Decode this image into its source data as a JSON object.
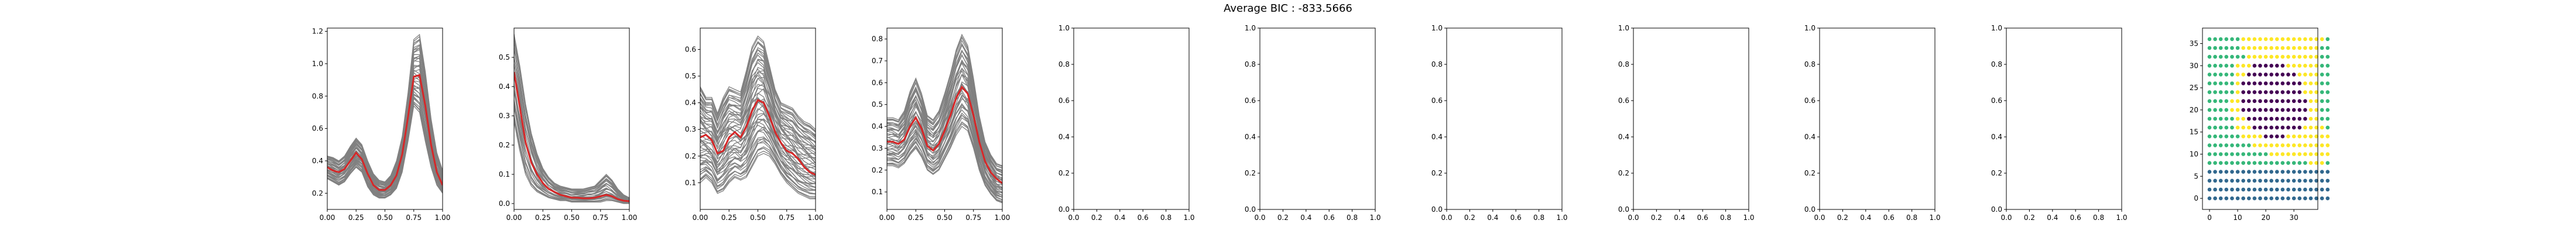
{
  "figure": {
    "suptitle": "Average BIC : -833.5666"
  },
  "colors": {
    "cluster_curves": "#808080",
    "mean_curve": "#d62728",
    "viridis": [
      "#440154",
      "#31688e",
      "#35b779",
      "#fde725"
    ]
  },
  "chart_data": [
    {
      "type": "line",
      "panel": 1,
      "xlim": [
        0.0,
        1.0
      ],
      "ylim": [
        0.1,
        1.22
      ],
      "x_ticks": [
        "0.00",
        "0.25",
        "0.50",
        "0.75",
        "1.00"
      ],
      "y_ticks": [
        "0.2",
        "0.4",
        "0.6",
        "0.8",
        "1.0",
        "1.2"
      ],
      "x": [
        0.0,
        0.05,
        0.1,
        0.15,
        0.2,
        0.25,
        0.3,
        0.35,
        0.4,
        0.45,
        0.5,
        0.55,
        0.6,
        0.65,
        0.7,
        0.75,
        0.8,
        0.85,
        0.9,
        0.95,
        1.0
      ],
      "series": [
        {
          "role": "cluster curves",
          "color": "gray",
          "count": 42,
          "lower": [
            0.29,
            0.27,
            0.25,
            0.27,
            0.32,
            0.36,
            0.33,
            0.24,
            0.19,
            0.17,
            0.17,
            0.19,
            0.23,
            0.33,
            0.52,
            0.74,
            0.7,
            0.52,
            0.36,
            0.25,
            0.2
          ],
          "upper": [
            0.43,
            0.42,
            0.4,
            0.43,
            0.49,
            0.54,
            0.5,
            0.4,
            0.32,
            0.28,
            0.27,
            0.31,
            0.4,
            0.55,
            0.82,
            1.15,
            1.18,
            0.95,
            0.66,
            0.45,
            0.34
          ]
        },
        {
          "role": "mean",
          "color": "red",
          "values": [
            0.36,
            0.34,
            0.33,
            0.35,
            0.4,
            0.45,
            0.41,
            0.32,
            0.25,
            0.22,
            0.22,
            0.25,
            0.31,
            0.44,
            0.67,
            0.92,
            0.93,
            0.74,
            0.5,
            0.33,
            0.25
          ]
        }
      ]
    },
    {
      "type": "line",
      "panel": 2,
      "xlim": [
        0.0,
        1.0
      ],
      "ylim": [
        -0.02,
        0.6
      ],
      "x_ticks": [
        "0.00",
        "0.25",
        "0.50",
        "0.75",
        "1.00"
      ],
      "y_ticks": [
        "0.0",
        "0.1",
        "0.2",
        "0.3",
        "0.4",
        "0.5"
      ],
      "x": [
        0.0,
        0.05,
        0.1,
        0.15,
        0.2,
        0.25,
        0.3,
        0.35,
        0.4,
        0.45,
        0.5,
        0.55,
        0.6,
        0.65,
        0.7,
        0.75,
        0.8,
        0.85,
        0.9,
        0.95,
        1.0
      ],
      "series": [
        {
          "role": "cluster curves",
          "color": "gray",
          "count": 30,
          "lower": [
            0.28,
            0.18,
            0.1,
            0.06,
            0.04,
            0.03,
            0.02,
            0.015,
            0.01,
            0.01,
            0.005,
            0.005,
            0.005,
            0.005,
            0.005,
            0.005,
            0.01,
            0.01,
            0.005,
            0.0,
            0.0
          ],
          "upper": [
            0.58,
            0.47,
            0.34,
            0.24,
            0.17,
            0.12,
            0.09,
            0.07,
            0.06,
            0.055,
            0.05,
            0.05,
            0.05,
            0.055,
            0.06,
            0.08,
            0.1,
            0.08,
            0.05,
            0.03,
            0.02
          ]
        },
        {
          "role": "mean",
          "color": "red",
          "values": [
            0.45,
            0.33,
            0.21,
            0.14,
            0.1,
            0.07,
            0.05,
            0.04,
            0.03,
            0.025,
            0.02,
            0.02,
            0.018,
            0.018,
            0.02,
            0.025,
            0.03,
            0.025,
            0.015,
            0.01,
            0.008
          ]
        }
      ]
    },
    {
      "type": "line",
      "panel": 3,
      "xlim": [
        0.0,
        1.0
      ],
      "ylim": [
        0.0,
        0.68
      ],
      "x_ticks": [
        "0.00",
        "0.25",
        "0.50",
        "0.75",
        "1.00"
      ],
      "y_ticks": [
        "0.1",
        "0.2",
        "0.3",
        "0.4",
        "0.5",
        "0.6"
      ],
      "x": [
        0.0,
        0.05,
        0.1,
        0.15,
        0.2,
        0.25,
        0.3,
        0.35,
        0.4,
        0.45,
        0.5,
        0.55,
        0.6,
        0.65,
        0.7,
        0.75,
        0.8,
        0.85,
        0.9,
        0.95,
        1.0
      ],
      "series": [
        {
          "role": "cluster curves",
          "color": "gray",
          "count": 55,
          "lower": [
            0.1,
            0.12,
            0.1,
            0.06,
            0.07,
            0.1,
            0.12,
            0.11,
            0.12,
            0.16,
            0.2,
            0.21,
            0.2,
            0.17,
            0.13,
            0.1,
            0.08,
            0.06,
            0.05,
            0.04,
            0.04
          ],
          "upper": [
            0.46,
            0.42,
            0.42,
            0.36,
            0.42,
            0.46,
            0.45,
            0.44,
            0.52,
            0.61,
            0.65,
            0.63,
            0.54,
            0.45,
            0.4,
            0.39,
            0.38,
            0.35,
            0.33,
            0.32,
            0.3
          ]
        },
        {
          "role": "mean",
          "color": "red",
          "values": [
            0.27,
            0.28,
            0.26,
            0.21,
            0.22,
            0.27,
            0.29,
            0.27,
            0.31,
            0.37,
            0.41,
            0.4,
            0.35,
            0.29,
            0.25,
            0.22,
            0.21,
            0.19,
            0.16,
            0.14,
            0.13
          ]
        }
      ]
    },
    {
      "type": "line",
      "panel": 4,
      "xlim": [
        0.0,
        1.0
      ],
      "ylim": [
        0.02,
        0.85
      ],
      "x_ticks": [
        "0.00",
        "0.25",
        "0.50",
        "0.75",
        "1.00"
      ],
      "y_ticks": [
        "0.1",
        "0.2",
        "0.3",
        "0.4",
        "0.5",
        "0.6",
        "0.7",
        "0.8"
      ],
      "x": [
        0.0,
        0.05,
        0.1,
        0.15,
        0.2,
        0.25,
        0.3,
        0.35,
        0.4,
        0.45,
        0.5,
        0.55,
        0.6,
        0.65,
        0.7,
        0.75,
        0.8,
        0.85,
        0.9,
        0.95,
        1.0
      ],
      "series": [
        {
          "role": "cluster curves",
          "color": "gray",
          "count": 45,
          "lower": [
            0.22,
            0.22,
            0.21,
            0.23,
            0.27,
            0.3,
            0.26,
            0.2,
            0.18,
            0.2,
            0.25,
            0.3,
            0.36,
            0.4,
            0.38,
            0.3,
            0.2,
            0.13,
            0.09,
            0.06,
            0.05
          ],
          "upper": [
            0.44,
            0.44,
            0.43,
            0.47,
            0.56,
            0.62,
            0.55,
            0.45,
            0.43,
            0.47,
            0.55,
            0.64,
            0.75,
            0.82,
            0.77,
            0.62,
            0.45,
            0.33,
            0.27,
            0.23,
            0.22
          ]
        },
        {
          "role": "mean",
          "color": "red",
          "values": [
            0.33,
            0.33,
            0.32,
            0.34,
            0.4,
            0.44,
            0.39,
            0.31,
            0.29,
            0.32,
            0.38,
            0.45,
            0.53,
            0.58,
            0.55,
            0.45,
            0.33,
            0.24,
            0.19,
            0.16,
            0.14
          ]
        }
      ]
    },
    {
      "type": "line",
      "panel": 5,
      "empty": true,
      "xlim": [
        0.0,
        1.0
      ],
      "ylim": [
        0.0,
        1.0
      ],
      "x_ticks": [
        "0.0",
        "0.2",
        "0.4",
        "0.6",
        "0.8",
        "1.0"
      ],
      "y_ticks": [
        "0.0",
        "0.2",
        "0.4",
        "0.6",
        "0.8",
        "1.0"
      ]
    },
    {
      "type": "line",
      "panel": 6,
      "empty": true,
      "xlim": [
        0.0,
        1.0
      ],
      "ylim": [
        0.0,
        1.0
      ],
      "x_ticks": [
        "0.0",
        "0.2",
        "0.4",
        "0.6",
        "0.8",
        "1.0"
      ],
      "y_ticks": [
        "0.0",
        "0.2",
        "0.4",
        "0.6",
        "0.8",
        "1.0"
      ]
    },
    {
      "type": "line",
      "panel": 7,
      "empty": true,
      "xlim": [
        0.0,
        1.0
      ],
      "ylim": [
        0.0,
        1.0
      ],
      "x_ticks": [
        "0.0",
        "0.2",
        "0.4",
        "0.6",
        "0.8",
        "1.0"
      ],
      "y_ticks": [
        "0.0",
        "0.2",
        "0.4",
        "0.6",
        "0.8",
        "1.0"
      ]
    },
    {
      "type": "line",
      "panel": 8,
      "empty": true,
      "xlim": [
        0.0,
        1.0
      ],
      "ylim": [
        0.0,
        1.0
      ],
      "x_ticks": [
        "0.0",
        "0.2",
        "0.4",
        "0.6",
        "0.8",
        "1.0"
      ],
      "y_ticks": [
        "0.0",
        "0.2",
        "0.4",
        "0.6",
        "0.8",
        "1.0"
      ]
    },
    {
      "type": "line",
      "panel": 9,
      "empty": true,
      "xlim": [
        0.0,
        1.0
      ],
      "ylim": [
        0.0,
        1.0
      ],
      "x_ticks": [
        "0.0",
        "0.2",
        "0.4",
        "0.6",
        "0.8",
        "1.0"
      ],
      "y_ticks": [
        "0.0",
        "0.2",
        "0.4",
        "0.6",
        "0.8",
        "1.0"
      ]
    },
    {
      "type": "line",
      "panel": 10,
      "empty": true,
      "xlim": [
        0.0,
        1.0
      ],
      "ylim": [
        0.0,
        1.0
      ],
      "x_ticks": [
        "0.0",
        "0.2",
        "0.4",
        "0.6",
        "0.8",
        "1.0"
      ],
      "y_ticks": [
        "0.0",
        "0.2",
        "0.4",
        "0.6",
        "0.8",
        "1.0"
      ]
    },
    {
      "type": "scatter",
      "panel": 11,
      "xlim": [
        -2.5,
        38.5
      ],
      "ylim": [
        -2.5,
        38.5
      ],
      "x_ticks": [
        "0",
        "10",
        "20",
        "30"
      ],
      "y_ticks": [
        "0",
        "5",
        "10",
        "15",
        "20",
        "25",
        "30",
        "35"
      ],
      "grid_x": [
        0,
        36,
        2
      ],
      "grid_y": [
        0,
        36,
        2
      ],
      "cluster_colors": {
        "0": "#440154",
        "1": "#31688e",
        "2": "#35b779",
        "3": "#fde725"
      },
      "rows_top_to_bottom": [
        "2222223333333333333332",
        "2222223333333333333322",
        "2222222333333333333322",
        "2222233300000033333322",
        "2222233000000000333322",
        "2222230000000000033322",
        "2222230000000000033322",
        "2222330000000000003322",
        "2222330000000000003322",
        "2222233000000000003322",
        "2222233300000000033332",
        "2222223333000033333333",
        "2222222233333333333333",
        "2222222222233333333333",
        "2222222222222222223332",
        "1111111111111111111111",
        "1111111111111111111111",
        "1111111111111111111111",
        "1111111111111111111111"
      ]
    }
  ]
}
